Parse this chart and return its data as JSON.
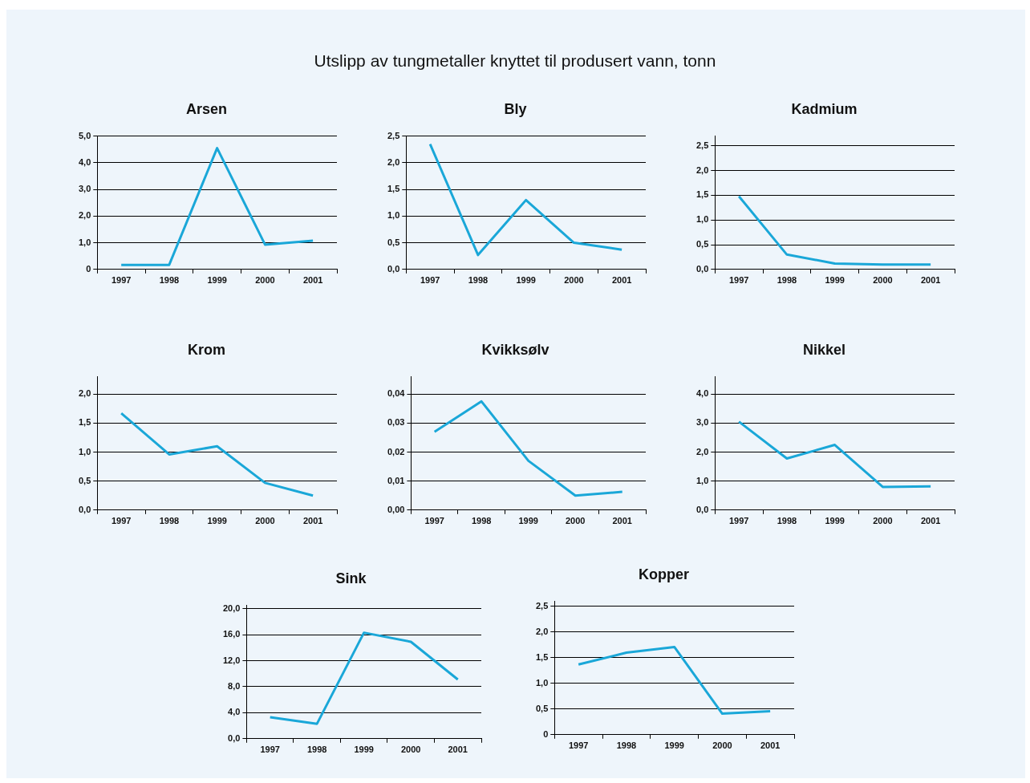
{
  "chart_data": [
    {
      "type": "other",
      "title": "Utslipp av tungmetaller knyttet til produsert vann, tonn"
    },
    {
      "type": "line",
      "title": "Arsen",
      "categories": [
        "1997",
        "1998",
        "1999",
        "2000",
        "2001"
      ],
      "grid": "y",
      "ylim": [
        0,
        5
      ],
      "yticks": [
        {
          "value": 0,
          "label": "0"
        },
        {
          "value": 1,
          "label": "1,0"
        },
        {
          "value": 2,
          "label": "2,0"
        },
        {
          "value": 3,
          "label": "3,0"
        },
        {
          "value": 4,
          "label": "4,0"
        },
        {
          "value": 5,
          "label": "5,0"
        }
      ],
      "series": [
        {
          "color": "#1aa7d8",
          "values": [
            0.17,
            0.17,
            4.55,
            0.93,
            1.08
          ]
        }
      ]
    },
    {
      "type": "line",
      "title": "Bly",
      "categories": [
        "1997",
        "1998",
        "1999",
        "2000",
        "2001"
      ],
      "grid": "y",
      "ylim": [
        0,
        2.5
      ],
      "yticks": [
        {
          "value": 0,
          "label": "0,0"
        },
        {
          "value": 0.5,
          "label": "0,5"
        },
        {
          "value": 1,
          "label": "1,0"
        },
        {
          "value": 1.5,
          "label": "1,5"
        },
        {
          "value": 2,
          "label": "2,0"
        },
        {
          "value": 2.5,
          "label": "2,5"
        }
      ],
      "series": [
        {
          "color": "#1aa7d8",
          "values": [
            2.35,
            0.27,
            1.3,
            0.5,
            0.37
          ]
        }
      ]
    },
    {
      "type": "line",
      "title": "Kadmium",
      "categories": [
        "1997",
        "1998",
        "1999",
        "2000",
        "2001"
      ],
      "grid": "y",
      "ylim": [
        0,
        2.7
      ],
      "yticks": [
        {
          "value": 0,
          "label": "0,0"
        },
        {
          "value": 0.5,
          "label": "0,5"
        },
        {
          "value": 1,
          "label": "1,0"
        },
        {
          "value": 1.5,
          "label": "1,5"
        },
        {
          "value": 2,
          "label": "2,0"
        },
        {
          "value": 2.5,
          "label": "2,5"
        }
      ],
      "series": [
        {
          "color": "#1aa7d8",
          "values": [
            1.48,
            0.3,
            0.12,
            0.1,
            0.1
          ]
        }
      ]
    },
    {
      "type": "line",
      "title": "Krom",
      "categories": [
        "1997",
        "1998",
        "1999",
        "2000",
        "2001"
      ],
      "grid": "y",
      "ylim": [
        0,
        2.3
      ],
      "yticks": [
        {
          "value": 0,
          "label": "0,0"
        },
        {
          "value": 0.5,
          "label": "0,5"
        },
        {
          "value": 1,
          "label": "1,0"
        },
        {
          "value": 1.5,
          "label": "1,5"
        },
        {
          "value": 2,
          "label": "2,0"
        }
      ],
      "series": [
        {
          "color": "#1aa7d8",
          "values": [
            1.67,
            0.96,
            1.1,
            0.47,
            0.25
          ]
        }
      ]
    },
    {
      "type": "line",
      "title": "Kvikksølv",
      "categories": [
        "1997",
        "1998",
        "1999",
        "2000",
        "2001"
      ],
      "grid": "y",
      "ylim": [
        0,
        0.046
      ],
      "yticks": [
        {
          "value": 0,
          "label": "0,00"
        },
        {
          "value": 0.01,
          "label": "0,01"
        },
        {
          "value": 0.02,
          "label": "0,02"
        },
        {
          "value": 0.03,
          "label": "0,03"
        },
        {
          "value": 0.04,
          "label": "0,04"
        }
      ],
      "series": [
        {
          "color": "#1aa7d8",
          "values": [
            0.027,
            0.0375,
            0.017,
            0.005,
            0.0063
          ]
        }
      ]
    },
    {
      "type": "line",
      "title": "Nikkel",
      "categories": [
        "1997",
        "1998",
        "1999",
        "2000",
        "2001"
      ],
      "grid": "y",
      "ylim": [
        0,
        4.6
      ],
      "yticks": [
        {
          "value": 0,
          "label": "0,0"
        },
        {
          "value": 1,
          "label": "1,0"
        },
        {
          "value": 2,
          "label": "2,0"
        },
        {
          "value": 3,
          "label": "3,0"
        },
        {
          "value": 4,
          "label": "4,0"
        }
      ],
      "series": [
        {
          "color": "#1aa7d8",
          "values": [
            3.05,
            1.78,
            2.25,
            0.8,
            0.82
          ]
        }
      ]
    },
    {
      "type": "line",
      "title": "Sink",
      "categories": [
        "1997",
        "1998",
        "1999",
        "2000",
        "2001"
      ],
      "grid": "y",
      "ylim": [
        0,
        20.5
      ],
      "yticks": [
        {
          "value": 0,
          "label": "0,0"
        },
        {
          "value": 4,
          "label": "4,0"
        },
        {
          "value": 8,
          "label": "8,0"
        },
        {
          "value": 12,
          "label": "12,0"
        },
        {
          "value": 16,
          "label": "16,0"
        },
        {
          "value": 20,
          "label": "20,0"
        }
      ],
      "series": [
        {
          "color": "#1aa7d8",
          "values": [
            3.3,
            2.3,
            16.3,
            14.9,
            9.1
          ]
        }
      ]
    },
    {
      "type": "line",
      "title": "Kopper",
      "categories": [
        "1997",
        "1998",
        "1999",
        "2000",
        "2001"
      ],
      "grid": "y",
      "ylim": [
        0,
        2.6
      ],
      "yticks": [
        {
          "value": 0,
          "label": "0"
        },
        {
          "value": 0.5,
          "label": "0,5"
        },
        {
          "value": 1,
          "label": "1,0"
        },
        {
          "value": 1.5,
          "label": "1,5"
        },
        {
          "value": 2,
          "label": "2,0"
        },
        {
          "value": 2.5,
          "label": "2,5"
        }
      ],
      "series": [
        {
          "color": "#1aa7d8",
          "values": [
            1.37,
            1.6,
            1.71,
            0.41,
            0.46
          ]
        }
      ]
    }
  ]
}
